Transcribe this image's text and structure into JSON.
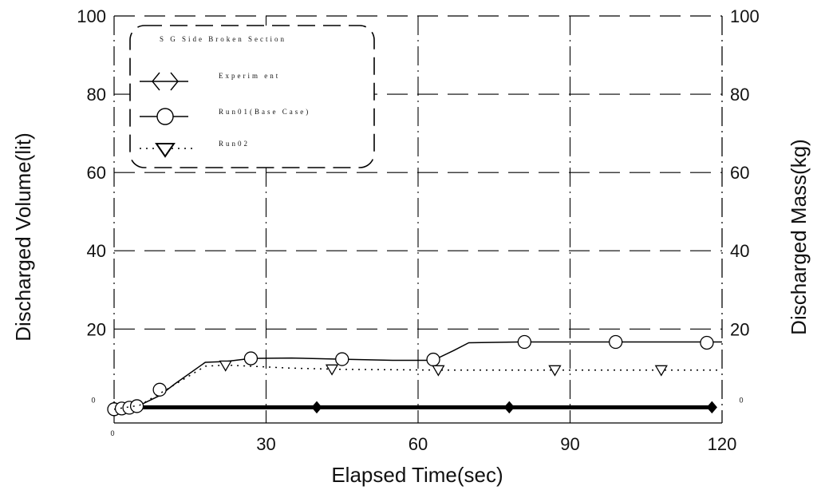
{
  "chart_data": {
    "type": "line",
    "xlabel": "Elapsed Time(sec)",
    "ylabel": "Discharged Volume(lit)",
    "y2label": "Discharged Mass(kg)",
    "xlim": [
      0,
      120
    ],
    "ylim": [
      -4,
      100
    ],
    "x_ticks": [
      30,
      60,
      90,
      120
    ],
    "y_ticks": [
      20,
      40,
      60,
      80,
      100
    ],
    "y2_ticks": [
      20,
      40,
      60,
      80,
      100
    ],
    "zero_labels": {
      "left": "0",
      "bottom": "0",
      "right": "0"
    },
    "grid": true,
    "legend": {
      "title": "S G  Side  Broken  Section",
      "placement": "top-left",
      "entries": [
        "Experim ent",
        "Run01(Base Case)",
        "Run02"
      ]
    },
    "series": [
      {
        "name": "Experiment",
        "style": "thick",
        "color": "#000000",
        "x": [
          0,
          40,
          78,
          118
        ],
        "y": [
          0,
          0,
          0,
          0
        ],
        "markers": [
          [
            0,
            0
          ],
          [
            40,
            0
          ],
          [
            78,
            0
          ],
          [
            118,
            0
          ]
        ]
      },
      {
        "name": "Run01(Base Case)",
        "style": "solid",
        "color": "#000000",
        "x": [
          0,
          1,
          2,
          4,
          5,
          9,
          12,
          18,
          22,
          27,
          35,
          45,
          55,
          63,
          67,
          70,
          80,
          100,
          120
        ],
        "y": [
          -0.5,
          -0.3,
          -0.1,
          0.2,
          0.5,
          3,
          6,
          11.5,
          11.7,
          12.5,
          12.6,
          12.3,
          12,
          12,
          14.5,
          16.5,
          16.7,
          16.7,
          16.7
        ],
        "markers": [
          [
            0,
            -0.5
          ],
          [
            1.5,
            -0.3
          ],
          [
            3,
            -0.1
          ],
          [
            4.5,
            0.3
          ],
          [
            9,
            4.5
          ],
          [
            27,
            12.5
          ],
          [
            45,
            12.3
          ],
          [
            63,
            12.2
          ],
          [
            81,
            16.7
          ],
          [
            99,
            16.7
          ],
          [
            117,
            16.5
          ]
        ]
      },
      {
        "name": "Run02",
        "style": "dotted",
        "color": "#000000",
        "x": [
          0,
          5,
          9,
          18,
          22,
          35,
          45,
          55,
          65,
          80,
          100,
          120
        ],
        "y": [
          -0.5,
          0.5,
          3.5,
          10.5,
          10.8,
          10,
          9.7,
          9.6,
          9.5,
          9.5,
          9.5,
          9.5
        ],
        "markers": [
          [
            22,
            10.8
          ],
          [
            43,
            9.8
          ],
          [
            64,
            9.6
          ],
          [
            87,
            9.6
          ],
          [
            108,
            9.6
          ]
        ]
      }
    ]
  }
}
